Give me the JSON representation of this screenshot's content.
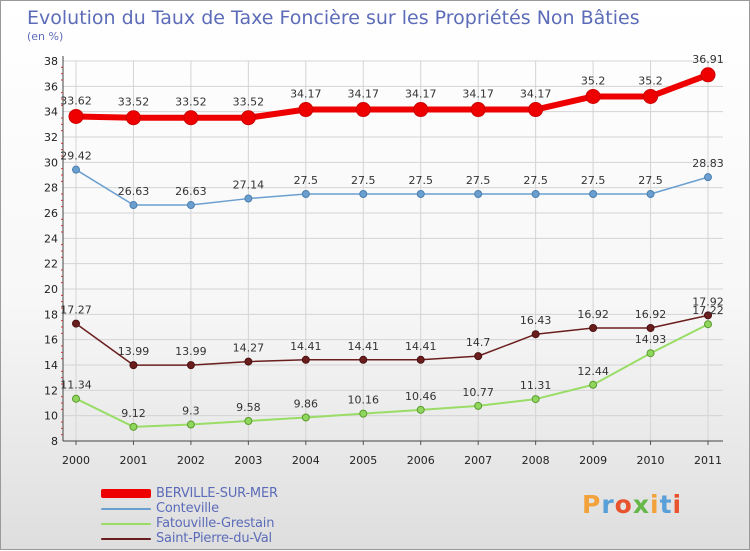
{
  "chart_data": {
    "type": "line",
    "title": "Evolution du Taux de Taxe Foncière sur les Propriétés Non Bâties",
    "ylabel": "(en %)",
    "xlabel": "",
    "x": [
      "2000",
      "2001",
      "2002",
      "2003",
      "2004",
      "2005",
      "2006",
      "2007",
      "2008",
      "2009",
      "2010",
      "2011"
    ],
    "ylim": [
      8,
      38
    ],
    "yticks": [
      "8",
      "10",
      "12",
      "14",
      "16",
      "18",
      "20",
      "22",
      "24",
      "26",
      "28",
      "30",
      "32",
      "34",
      "36",
      "38"
    ],
    "grid": true,
    "legend_position": "bottom-left",
    "series": [
      {
        "name": "BERVILLE-SUR-MER",
        "color": "#ee0000",
        "values": [
          33.62,
          33.52,
          33.52,
          33.52,
          34.17,
          34.17,
          34.17,
          34.17,
          34.17,
          35.2,
          35.2,
          36.91
        ],
        "labels": [
          "33.62",
          "33.52",
          "33.52",
          "33.52",
          "34.17",
          "34.17",
          "34.17",
          "34.17",
          "34.17",
          "35.2",
          "35.2",
          "36.91"
        ]
      },
      {
        "name": "Conteville",
        "color": "#6a9fcf",
        "values": [
          29.42,
          26.63,
          26.63,
          27.14,
          27.5,
          27.5,
          27.5,
          27.5,
          27.5,
          27.5,
          27.5,
          28.83
        ],
        "labels": [
          "29.42",
          "26.63",
          "26.63",
          "27.14",
          "27.5",
          "27.5",
          "27.5",
          "27.5",
          "27.5",
          "27.5",
          "27.5",
          "28.83"
        ]
      },
      {
        "name": "Fatouville-Grestain",
        "color": "#99dd66",
        "values": [
          11.34,
          9.12,
          9.3,
          9.58,
          9.86,
          10.16,
          10.46,
          10.77,
          11.31,
          12.44,
          14.93,
          17.22
        ],
        "labels": [
          "11.34",
          "9.12",
          "9.3",
          "9.58",
          "9.86",
          "10.16",
          "10.46",
          "10.77",
          "11.31",
          "12.44",
          "14.93",
          "17.22"
        ]
      },
      {
        "name": "Saint-Pierre-du-Val",
        "color": "#6b1e1e",
        "values": [
          17.27,
          13.99,
          13.99,
          14.27,
          14.41,
          14.41,
          14.41,
          14.7,
          16.43,
          16.92,
          16.92,
          17.92
        ],
        "labels": [
          "17.27",
          "13.99",
          "13.99",
          "14.27",
          "14.41",
          "14.41",
          "14.41",
          "14.7",
          "16.43",
          "16.92",
          "16.92",
          "17.92"
        ]
      }
    ]
  },
  "logo": {
    "text": "Proxiti",
    "letter_colors": [
      "#f2a23a",
      "#5aa0d8",
      "#e8532e",
      "#66b84a",
      "#f2a23a",
      "#5aa0d8",
      "#e8532e"
    ]
  }
}
